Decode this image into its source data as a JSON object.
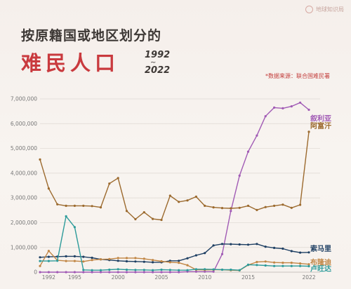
{
  "brand": {
    "name": "地球知识局"
  },
  "title": {
    "line1": "按原籍国或地区划分的",
    "line2": "难民人口",
    "year_start": "1992",
    "year_sep": "~",
    "year_end": "2022"
  },
  "source": "*数据来源：联合国难民署",
  "chart_data": {
    "type": "line",
    "title": "按原籍国或地区划分的难民人口 1992~2022",
    "xlabel": "",
    "ylabel": "",
    "x": [
      1991,
      1992,
      1993,
      1994,
      1995,
      1996,
      1997,
      1998,
      1999,
      2000,
      2001,
      2002,
      2003,
      2004,
      2005,
      2006,
      2007,
      2008,
      2009,
      2010,
      2011,
      2012,
      2013,
      2014,
      2015,
      2016,
      2017,
      2018,
      2019,
      2020,
      2021,
      2022
    ],
    "x_ticks": [
      1992,
      1995,
      2000,
      2005,
      2010,
      2015,
      2022
    ],
    "x_tick_labels": [
      "1992",
      "1995",
      "2000",
      "2005",
      "2010",
      "2015",
      "2022"
    ],
    "ylim": [
      0,
      7000000
    ],
    "y_ticks": [
      0,
      1000000,
      2000000,
      3000000,
      4000000,
      5000000,
      6000000,
      7000000
    ],
    "y_tick_labels": [
      "0",
      "1,000,000",
      "2,000,000",
      "3,000,000",
      "4,000,000",
      "5,000,000",
      "6,000,000",
      "7,000,000"
    ],
    "grid": "horizontal",
    "series": [
      {
        "name": "叙利亚",
        "color": "#a15bb5",
        "values": [
          0,
          0,
          0,
          0,
          0,
          0,
          0,
          0,
          0,
          0,
          0,
          0,
          0,
          0,
          0,
          0,
          0,
          20000,
          20000,
          20000,
          20000,
          730000,
          2470000,
          3900000,
          4870000,
          5520000,
          6300000,
          6650000,
          6620000,
          6700000,
          6850000,
          6560000
        ]
      },
      {
        "name": "阿富汗",
        "color": "#9c6a2e",
        "values": [
          4550000,
          3380000,
          2740000,
          2680000,
          2680000,
          2680000,
          2670000,
          2620000,
          3580000,
          3800000,
          2470000,
          2140000,
          2420000,
          2150000,
          2110000,
          3090000,
          2840000,
          2900000,
          3050000,
          2680000,
          2620000,
          2590000,
          2580000,
          2600000,
          2680000,
          2510000,
          2630000,
          2680000,
          2730000,
          2600000,
          2720000,
          5670000
        ]
      },
      {
        "name": "索马里",
        "color": "#1e3f63",
        "values": [
          600000,
          620000,
          630000,
          640000,
          640000,
          620000,
          580000,
          520000,
          490000,
          460000,
          440000,
          430000,
          420000,
          400000,
          400000,
          460000,
          460000,
          560000,
          680000,
          770000,
          1080000,
          1140000,
          1130000,
          1120000,
          1110000,
          1140000,
          1030000,
          980000,
          950000,
          850000,
          790000,
          800000
        ]
      },
      {
        "name": "布隆迪",
        "color": "#c18645",
        "values": [
          250000,
          860000,
          480000,
          450000,
          450000,
          430000,
          490000,
          520000,
          530000,
          570000,
          570000,
          570000,
          540000,
          490000,
          440000,
          400000,
          380000,
          280000,
          100000,
          90000,
          100000,
          100000,
          80000,
          70000,
          290000,
          410000,
          430000,
          390000,
          380000,
          380000,
          350000,
          320000
        ]
      },
      {
        "name": "卢旺达",
        "color": "#2d9b9a",
        "values": [
          450000,
          450000,
          460000,
          2260000,
          1820000,
          90000,
          80000,
          80000,
          100000,
          120000,
          100000,
          90000,
          90000,
          80000,
          100000,
          90000,
          80000,
          80000,
          120000,
          120000,
          110000,
          100000,
          100000,
          80000,
          300000,
          290000,
          270000,
          250000,
          250000,
          250000,
          250000,
          240000
        ]
      }
    ]
  }
}
